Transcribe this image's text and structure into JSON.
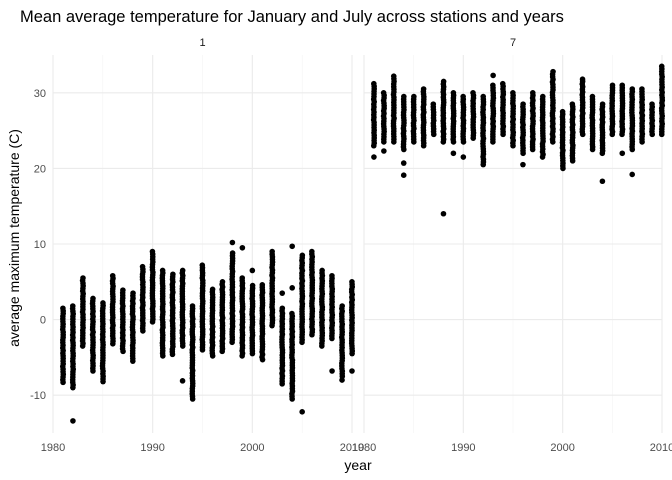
{
  "chart_data": {
    "type": "scatter",
    "title": "Mean average temperature for January and July across stations and years",
    "xlabel": "year",
    "ylabel": "average maximum temperature (C)",
    "xlim": [
      1980,
      2010
    ],
    "ylim": [
      -15,
      35
    ],
    "x_ticks": [
      1980,
      1990,
      2000,
      2010
    ],
    "y_ticks": [
      -10,
      0,
      10,
      20,
      30
    ],
    "grid": true,
    "legend": "none",
    "marker_color": "#000000",
    "facets": [
      {
        "label": "1",
        "ranges": [
          [
            1981,
            -8.3,
            1.5
          ],
          [
            1982,
            -9.0,
            1.8
          ],
          [
            1983,
            -3.5,
            5.5
          ],
          [
            1984,
            -6.8,
            2.8
          ],
          [
            1985,
            -8.2,
            2.2
          ],
          [
            1986,
            -3.2,
            5.8
          ],
          [
            1987,
            -4.2,
            3.9
          ],
          [
            1988,
            -5.5,
            3.5
          ],
          [
            1989,
            -1.5,
            7.0
          ],
          [
            1990,
            -0.3,
            9.0
          ],
          [
            1991,
            -4.8,
            6.5
          ],
          [
            1992,
            -4.6,
            6.0
          ],
          [
            1993,
            -3.5,
            6.5
          ],
          [
            1994,
            -10.5,
            1.8
          ],
          [
            1995,
            -4.0,
            7.2
          ],
          [
            1996,
            -4.8,
            4.0
          ],
          [
            1997,
            -4.2,
            5.0
          ],
          [
            1998,
            -3.0,
            8.8
          ],
          [
            1999,
            -4.8,
            5.5
          ],
          [
            2000,
            -4.5,
            4.5
          ],
          [
            2001,
            -5.3,
            4.6
          ],
          [
            2002,
            -0.8,
            9.0
          ],
          [
            2003,
            -8.5,
            1.5
          ],
          [
            2004,
            -10.5,
            0.8
          ],
          [
            2005,
            -3.0,
            8.5
          ],
          [
            2006,
            -2.0,
            9.0
          ],
          [
            2007,
            -3.5,
            6.5
          ],
          [
            2008,
            -2.5,
            5.8
          ],
          [
            2009,
            -7.5,
            1.8
          ],
          [
            2010,
            -4.5,
            5.0
          ]
        ],
        "outliers": [
          [
            1982,
            -13.4
          ],
          [
            1993,
            -8.1
          ],
          [
            1996,
            -3.0
          ],
          [
            1998,
            10.2
          ],
          [
            1999,
            9.5
          ],
          [
            2000,
            6.5
          ],
          [
            2003,
            3.5
          ],
          [
            2004,
            9.7
          ],
          [
            2004,
            4.2
          ],
          [
            2005,
            -12.2
          ],
          [
            2008,
            -6.8
          ],
          [
            2009,
            -8.0
          ],
          [
            2010,
            -6.8
          ]
        ]
      },
      {
        "label": "7",
        "ranges": [
          [
            1981,
            23.0,
            31.2
          ],
          [
            1982,
            23.5,
            30.0
          ],
          [
            1983,
            23.5,
            32.2
          ],
          [
            1984,
            22.5,
            29.5
          ],
          [
            1985,
            23.5,
            29.5
          ],
          [
            1986,
            23.0,
            30.5
          ],
          [
            1987,
            24.5,
            28.5
          ],
          [
            1988,
            23.5,
            31.5
          ],
          [
            1989,
            23.5,
            30.0
          ],
          [
            1990,
            23.5,
            29.5
          ],
          [
            1991,
            24.0,
            30.0
          ],
          [
            1992,
            20.5,
            29.5
          ],
          [
            1993,
            23.5,
            31.0
          ],
          [
            1994,
            24.5,
            31.2
          ],
          [
            1995,
            23.0,
            30.0
          ],
          [
            1996,
            22.0,
            28.5
          ],
          [
            1997,
            22.5,
            30.0
          ],
          [
            1998,
            21.5,
            29.5
          ],
          [
            1999,
            23.5,
            32.8
          ],
          [
            2000,
            20.0,
            27.5
          ],
          [
            2001,
            21.0,
            28.5
          ],
          [
            2002,
            24.5,
            31.5
          ],
          [
            2003,
            22.5,
            29.5
          ],
          [
            2004,
            22.0,
            28.5
          ],
          [
            2005,
            24.5,
            31.0
          ],
          [
            2006,
            24.5,
            31.0
          ],
          [
            2007,
            22.5,
            30.5
          ],
          [
            2008,
            23.5,
            30.5
          ],
          [
            2009,
            24.5,
            28.5
          ],
          [
            2010,
            24.5,
            33.5
          ]
        ],
        "outliers": [
          [
            1981,
            21.5
          ],
          [
            1982,
            22.3
          ],
          [
            1984,
            20.7
          ],
          [
            1984,
            19.1
          ],
          [
            1988,
            14.0
          ],
          [
            1989,
            22.0
          ],
          [
            1990,
            21.5
          ],
          [
            1993,
            32.3
          ],
          [
            1996,
            20.5
          ],
          [
            2002,
            31.8
          ],
          [
            2004,
            18.3
          ],
          [
            2006,
            22.0
          ],
          [
            2007,
            19.2
          ]
        ]
      }
    ]
  }
}
